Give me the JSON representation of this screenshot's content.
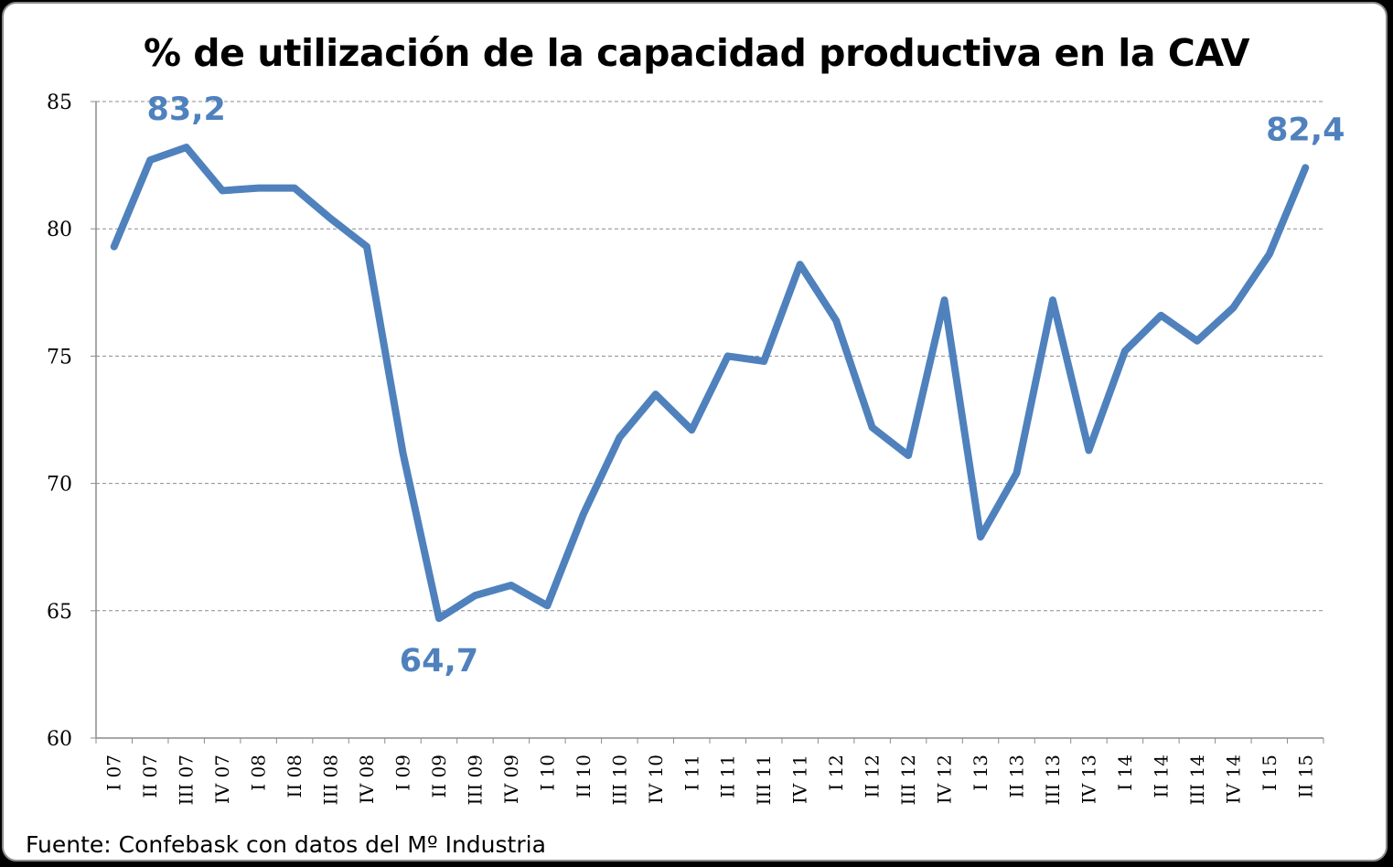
{
  "chart_data": {
    "type": "line",
    "title": "% de utilización de la capacidad productiva en la CAV",
    "source": "Fuente: Confebask con datos del Mº Industria",
    "ylim": [
      60,
      85
    ],
    "yticks": [
      "60",
      "65",
      "70",
      "75",
      "80",
      "85"
    ],
    "grid": true,
    "line_color": "#4f81bd",
    "categories": [
      "I 07",
      "II 07",
      "III 07",
      "IV 07",
      "I 08",
      "II 08",
      "III 08",
      "IV 08",
      "I 09",
      "II 09",
      "III 09",
      "IV 09",
      "I 10",
      "II 10",
      "III 10",
      "IV 10",
      "I 11",
      "II 11",
      "III 11",
      "IV 11",
      "I 12",
      "II 12",
      "III 12",
      "IV 12",
      "I 13",
      "II 13",
      "III 13",
      "IV 13",
      "I 14",
      "II 14",
      "III 14",
      "IV 14",
      "I 15",
      "II 15"
    ],
    "values": [
      79.3,
      82.7,
      83.2,
      81.5,
      81.6,
      81.6,
      80.4,
      79.3,
      71.2,
      64.7,
      65.6,
      66.0,
      65.2,
      68.8,
      71.8,
      73.5,
      72.1,
      75.0,
      74.8,
      78.6,
      76.4,
      72.2,
      71.1,
      77.2,
      67.9,
      70.4,
      77.2,
      71.3,
      75.2,
      76.6,
      75.6,
      76.9,
      79.0,
      82.4
    ],
    "annotations": [
      {
        "index": 2,
        "text": "83,2",
        "position": "above"
      },
      {
        "index": 9,
        "text": "64,7",
        "position": "below"
      },
      {
        "index": 33,
        "text": "82,4",
        "position": "above"
      }
    ]
  }
}
